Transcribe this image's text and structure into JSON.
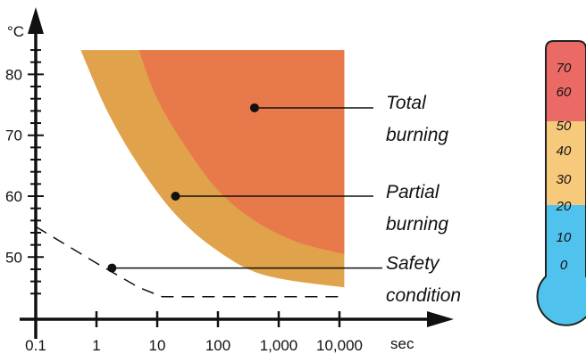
{
  "chart_data": {
    "type": "area",
    "x_scale": "log",
    "x_unit": "sec",
    "y_unit": "°C",
    "x_ticks": [
      {
        "value": 0.1,
        "label": "0.1"
      },
      {
        "value": 1,
        "label": "1"
      },
      {
        "value": 10,
        "label": "10"
      },
      {
        "value": 100,
        "label": "100"
      },
      {
        "value": 1000,
        "label": "1,000"
      },
      {
        "value": 10000,
        "label": "10,000"
      }
    ],
    "y_ticks": [
      {
        "value": 50,
        "label": "50"
      },
      {
        "value": 60,
        "label": "60"
      },
      {
        "value": 70,
        "label": "70"
      },
      {
        "value": 80,
        "label": "80"
      }
    ],
    "xlim": [
      0.1,
      10000
    ],
    "ylim": [
      42,
      86
    ],
    "series": [
      {
        "name": "Partial burning",
        "color": "#e0a24a",
        "top": 84,
        "boundary": [
          [
            0.55,
            84
          ],
          [
            1.5,
            74
          ],
          [
            5,
            65
          ],
          [
            20,
            57
          ],
          [
            100,
            51
          ],
          [
            600,
            47
          ],
          [
            12000,
            45
          ]
        ]
      },
      {
        "name": "Total burning",
        "color": "#e8794a",
        "top": 84,
        "boundary": [
          [
            5,
            84
          ],
          [
            10,
            76
          ],
          [
            30,
            68
          ],
          [
            100,
            61
          ],
          [
            400,
            56
          ],
          [
            2000,
            52.5
          ],
          [
            12000,
            50.5
          ]
        ]
      },
      {
        "name": "Safety condition",
        "style": "dashed",
        "points": [
          [
            0.1,
            55
          ],
          [
            1,
            49
          ],
          [
            5,
            45
          ],
          [
            12,
            43.5
          ],
          [
            12000,
            43.5
          ]
        ]
      }
    ],
    "annotations": [
      {
        "text_lines": [
          "Total",
          "burning"
        ],
        "point": [
          400,
          74.5
        ]
      },
      {
        "text_lines": [
          "Partial",
          "burning"
        ],
        "point": [
          20,
          60
        ]
      },
      {
        "text_lines": [
          "Safety",
          "condition"
        ],
        "point": [
          1.8,
          48.2
        ]
      }
    ]
  },
  "thermometer": {
    "labels": [
      "70",
      "60",
      "50",
      "40",
      "30",
      "20",
      "10",
      "0"
    ],
    "colors": {
      "hot": "#ec6a66",
      "warm": "#f7c97a",
      "cool": "#4fc3ee",
      "outline": "#222222"
    }
  }
}
